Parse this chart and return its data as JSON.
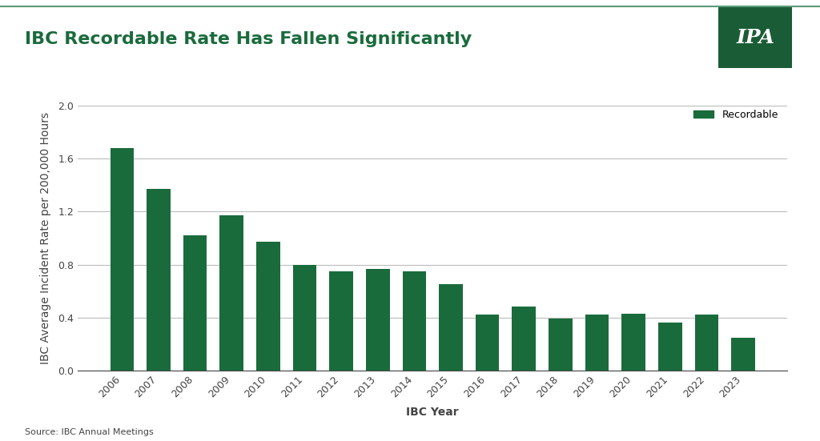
{
  "title": "IBC Recordable Rate Has Fallen Significantly",
  "xlabel": "IBC Year",
  "ylabel": "IBC Average Incident Rate per 200,000 Hours",
  "source_text": "Source: IBC Annual Meetings",
  "legend_label": "Recordable",
  "bar_color": "#1a6b3c",
  "background_color": "#ffffff",
  "years": [
    2006,
    2007,
    2008,
    2009,
    2010,
    2011,
    2012,
    2013,
    2014,
    2015,
    2016,
    2017,
    2018,
    2019,
    2020,
    2021,
    2022,
    2023
  ],
  "values": [
    1.68,
    1.37,
    1.02,
    1.17,
    0.97,
    0.8,
    0.75,
    0.77,
    0.75,
    0.65,
    0.42,
    0.48,
    0.39,
    0.42,
    0.43,
    0.36,
    0.42,
    0.25
  ],
  "ylim": [
    0.0,
    2.0
  ],
  "yticks": [
    0.0,
    0.4,
    0.8,
    1.2,
    1.6,
    2.0
  ],
  "title_fontsize": 16,
  "axis_label_fontsize": 10,
  "tick_fontsize": 9,
  "legend_fontsize": 9,
  "source_fontsize": 8,
  "title_color": "#1a6b3c",
  "axis_color": "#444444",
  "grid_color": "#bbbbbb",
  "ipa_box_color": "#1a5c36",
  "top_line_color": "#5a9a7a",
  "ipa_text": "IPA"
}
